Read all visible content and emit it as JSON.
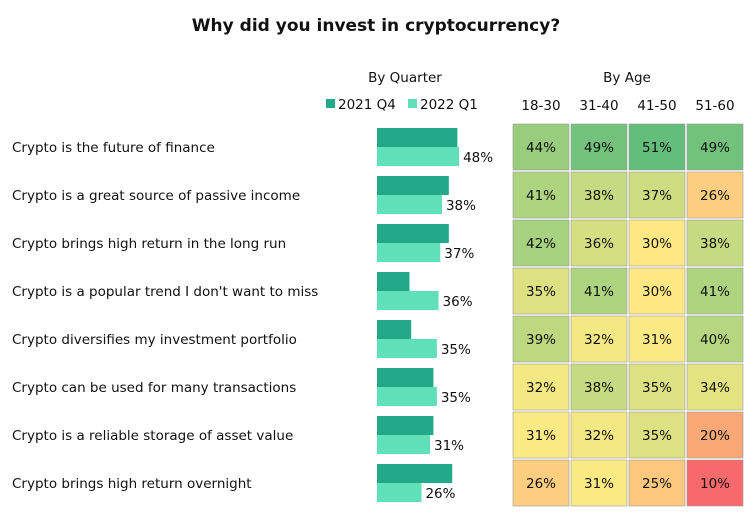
{
  "title": "Why did you invest in cryptocurrency?",
  "chart_data": [
    {
      "type": "bar",
      "title": "By Quarter",
      "categories": [
        "Crypto is the future of finance",
        "Crypto is a great source of passive income",
        "Crypto brings high return in the long run",
        "Crypto is a popular trend I don't want to miss",
        "Crypto diversifies my investment portfolio",
        "Crypto can be used for many transactions",
        "Crypto is a reliable storage of asset value",
        "Crypto brings high return overnight"
      ],
      "series": [
        {
          "name": "2021 Q4",
          "color": "#23a88a",
          "values": [
            47,
            42,
            42,
            19,
            20,
            33,
            33,
            44
          ]
        },
        {
          "name": "2022 Q1",
          "color": "#5fe0b9",
          "values": [
            48,
            38,
            37,
            36,
            35,
            35,
            31,
            26
          ],
          "value_labels": [
            "48%",
            "38%",
            "37%",
            "36%",
            "35%",
            "35%",
            "31%",
            "26%"
          ]
        }
      ]
    },
    {
      "type": "heatmap",
      "title": "By Age",
      "columns": [
        "18-30",
        "31-40",
        "41-50",
        "51-60"
      ],
      "colormap": [
        "#f8696b",
        "#ffeb84",
        "#63be7b"
      ],
      "values": [
        [
          44,
          49,
          51,
          49
        ],
        [
          41,
          38,
          37,
          26
        ],
        [
          42,
          36,
          30,
          38
        ],
        [
          35,
          41,
          30,
          41
        ],
        [
          39,
          32,
          31,
          40
        ],
        [
          32,
          38,
          35,
          34
        ],
        [
          31,
          32,
          35,
          20
        ],
        [
          26,
          31,
          25,
          10
        ]
      ],
      "value_labels": [
        [
          "44%",
          "49%",
          "51%",
          "49%"
        ],
        [
          "41%",
          "38%",
          "37%",
          "26%"
        ],
        [
          "42%",
          "36%",
          "30%",
          "38%"
        ],
        [
          "35%",
          "41%",
          "30%",
          "41%"
        ],
        [
          "39%",
          "32%",
          "31%",
          "40%"
        ],
        [
          "32%",
          "38%",
          "35%",
          "34%"
        ],
        [
          "31%",
          "32%",
          "35%",
          "20%"
        ],
        [
          "26%",
          "31%",
          "25%",
          "10%"
        ]
      ]
    }
  ]
}
